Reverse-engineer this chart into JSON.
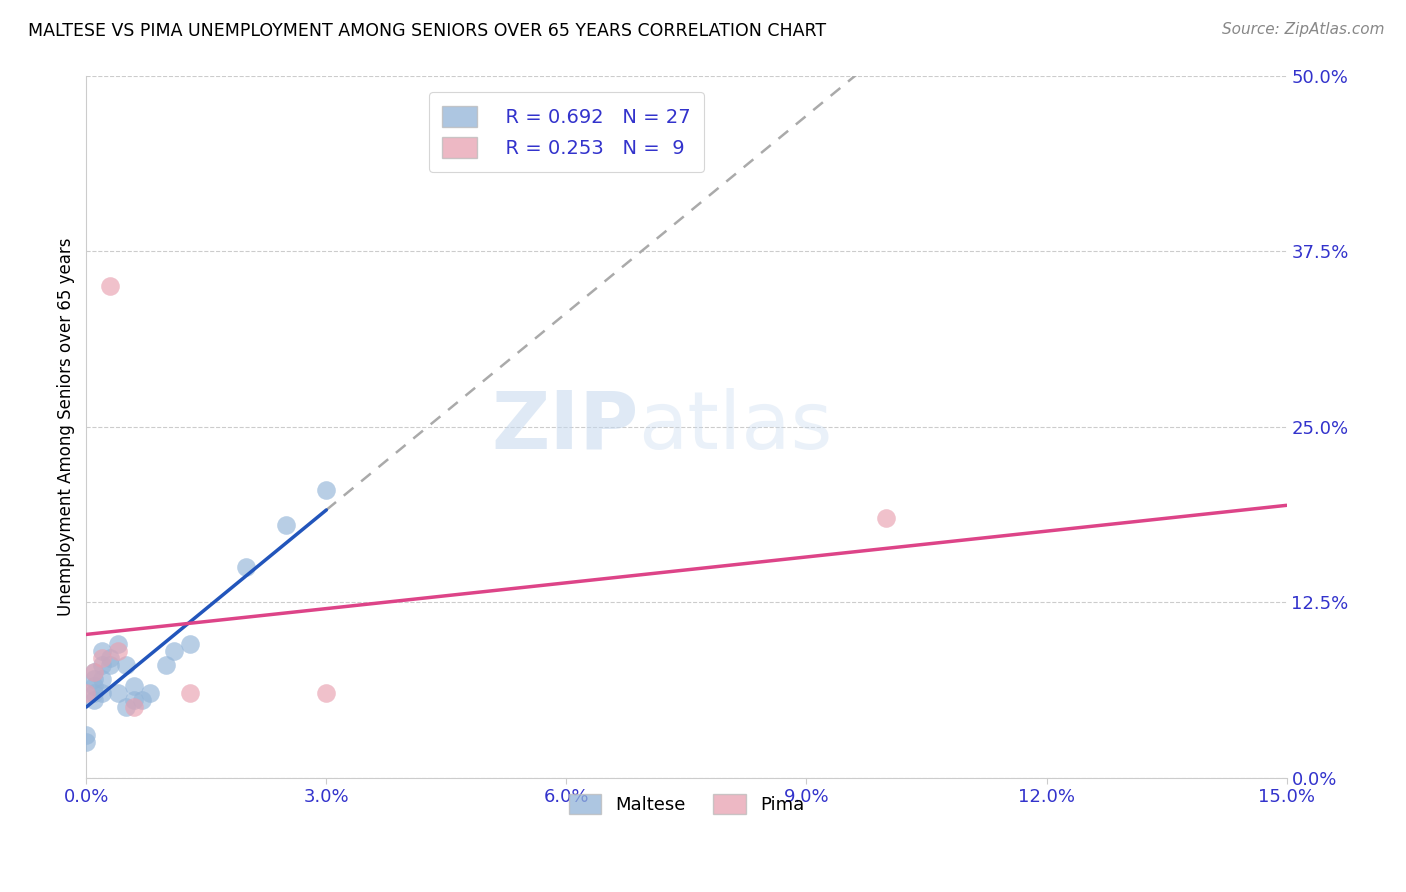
{
  "title": "MALTESE VS PIMA UNEMPLOYMENT AMONG SENIORS OVER 65 YEARS CORRELATION CHART",
  "source": "Source: ZipAtlas.com",
  "ylabel_label": "Unemployment Among Seniors over 65 years",
  "xlim": [
    0.0,
    0.15
  ],
  "ylim": [
    0.0,
    0.5
  ],
  "legend_r_maltese": "R = 0.692",
  "legend_n_maltese": "N = 27",
  "legend_r_pima": "R = 0.253",
  "legend_n_pima": "N =  9",
  "maltese_color": "#92b4d8",
  "pima_color": "#e8a0b0",
  "trendline_maltese_color": "#2255bb",
  "trendline_pima_color": "#dd4488",
  "trendline_extension_color": "#aaaaaa",
  "watermark_zip": "ZIP",
  "watermark_atlas": "atlas",
  "maltese_x": [
    0.0,
    0.0,
    0.001,
    0.001,
    0.001,
    0.001,
    0.001,
    0.002,
    0.002,
    0.002,
    0.002,
    0.003,
    0.003,
    0.004,
    0.004,
    0.005,
    0.005,
    0.006,
    0.006,
    0.007,
    0.008,
    0.01,
    0.011,
    0.013,
    0.02,
    0.025,
    0.03
  ],
  "maltese_y": [
    0.03,
    0.025,
    0.055,
    0.06,
    0.065,
    0.07,
    0.075,
    0.06,
    0.07,
    0.08,
    0.09,
    0.08,
    0.085,
    0.095,
    0.06,
    0.08,
    0.05,
    0.065,
    0.055,
    0.055,
    0.06,
    0.08,
    0.09,
    0.095,
    0.15,
    0.18,
    0.205
  ],
  "pima_x": [
    0.0,
    0.001,
    0.002,
    0.003,
    0.004,
    0.006,
    0.013,
    0.03,
    0.1
  ],
  "pima_y": [
    0.06,
    0.075,
    0.085,
    0.35,
    0.09,
    0.05,
    0.06,
    0.06,
    0.185
  ],
  "background_color": "#ffffff",
  "grid_color": "#cccccc",
  "tick_color": "#3333cc",
  "xtick_vals": [
    0.0,
    0.03,
    0.06,
    0.09,
    0.12,
    0.15
  ],
  "ytick_vals": [
    0.0,
    0.125,
    0.25,
    0.375,
    0.5
  ]
}
